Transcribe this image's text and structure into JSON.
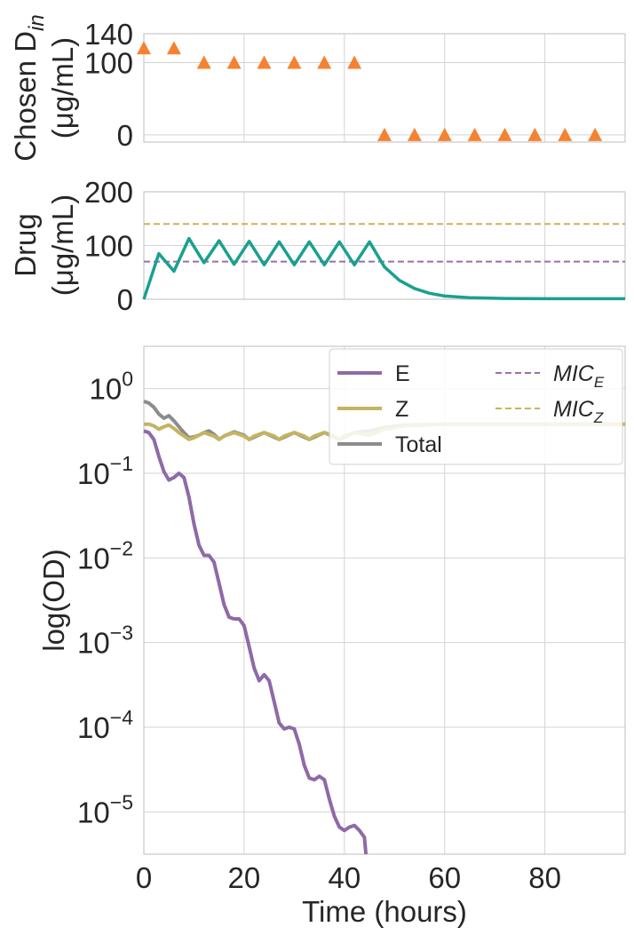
{
  "chart_data": [
    {
      "type": "scatter",
      "ylabel_line1": "Chosen D",
      "ylabel_sub": "in",
      "ylabel_line2": "(μg/mL)",
      "xlim": [
        0,
        96
      ],
      "ylim": [
        -10,
        140
      ],
      "yticks": [
        0,
        100,
        140
      ],
      "marker": "triangle",
      "color": "#f58231",
      "x": [
        0,
        6,
        12,
        18,
        24,
        30,
        36,
        42,
        48,
        54,
        60,
        66,
        72,
        78,
        84,
        90
      ],
      "y": [
        120,
        120,
        100,
        100,
        100,
        100,
        100,
        100,
        0,
        0,
        0,
        0,
        0,
        0,
        0,
        0
      ]
    },
    {
      "type": "line",
      "ylabel_line1": "Drug",
      "ylabel_line2": "(μg/mL)",
      "xlim": [
        0,
        96
      ],
      "ylim": [
        0,
        200
      ],
      "yticks": [
        0,
        100,
        200
      ],
      "mic_lines": [
        {
          "name": "MIC_E",
          "value": 70,
          "color": "#9b6fa8"
        },
        {
          "name": "MIC_Z",
          "value": 140,
          "color": "#c9b25c"
        }
      ],
      "series": [
        {
          "color": "#1aa090",
          "points": [
            [
              0,
              0
            ],
            [
              3,
              85
            ],
            [
              6,
              52
            ],
            [
              9,
              113
            ],
            [
              12,
              68
            ],
            [
              15,
              109
            ],
            [
              18,
              65
            ],
            [
              21,
              108
            ],
            [
              24,
              64
            ],
            [
              27,
              107
            ],
            [
              30,
              64
            ],
            [
              33,
              107
            ],
            [
              36,
              64
            ],
            [
              39,
              107
            ],
            [
              42,
              64
            ],
            [
              45,
              107
            ],
            [
              48,
              60
            ],
            [
              51,
              35
            ],
            [
              54,
              20
            ],
            [
              57,
              11
            ],
            [
              60,
              6
            ],
            [
              65,
              3
            ],
            [
              72,
              1.5
            ],
            [
              80,
              1
            ],
            [
              96,
              1
            ]
          ]
        }
      ]
    },
    {
      "type": "line",
      "xlabel": "Time (hours)",
      "ylabel": "log(OD)",
      "xlim": [
        0,
        96
      ],
      "xticks": [
        0,
        20,
        40,
        60,
        80
      ],
      "yscale": "log",
      "ylim_log10": [
        -5.5,
        0.5
      ],
      "yticks_exp": [
        0,
        -1,
        -2,
        -3,
        -4,
        -5
      ],
      "legend": {
        "placement": "top-right",
        "columns": 2,
        "entries": [
          {
            "label": "E",
            "style": "solid",
            "color": "#8e6aa6"
          },
          {
            "label": "MIC",
            "sub": "E",
            "style": "dashed",
            "color": "#9b6fa8"
          },
          {
            "label": "Z",
            "style": "solid",
            "color": "#c4b462"
          },
          {
            "label": "MIC",
            "sub": "Z",
            "style": "dashed",
            "color": "#c9b25c"
          },
          {
            "label": "Total",
            "style": "solid",
            "color": "#8c8c8c"
          }
        ]
      },
      "series": [
        {
          "name": "Total",
          "color": "#8c8c8c",
          "points_log10": [
            [
              0,
              -0.15
            ],
            [
              1,
              -0.17
            ],
            [
              2,
              -0.22
            ],
            [
              3,
              -0.3
            ],
            [
              4,
              -0.35
            ],
            [
              5,
              -0.32
            ],
            [
              6,
              -0.38
            ],
            [
              7,
              -0.45
            ],
            [
              8,
              -0.52
            ],
            [
              9,
              -0.58
            ],
            [
              10,
              -0.57
            ],
            [
              11,
              -0.55
            ],
            [
              12,
              -0.52
            ],
            [
              13,
              -0.5
            ],
            [
              14,
              -0.54
            ],
            [
              15,
              -0.6
            ],
            [
              16,
              -0.56
            ],
            [
              18,
              -0.51
            ],
            [
              20,
              -0.55
            ],
            [
              21,
              -0.6
            ],
            [
              24,
              -0.52
            ],
            [
              27,
              -0.6
            ],
            [
              30,
              -0.52
            ],
            [
              33,
              -0.6
            ],
            [
              36,
              -0.52
            ],
            [
              39,
              -0.6
            ],
            [
              42,
              -0.52
            ],
            [
              45,
              -0.5
            ],
            [
              48,
              -0.46
            ],
            [
              52,
              -0.43
            ],
            [
              60,
              -0.42
            ],
            [
              96,
              -0.42
            ]
          ]
        },
        {
          "name": "Z",
          "color": "#c4b462",
          "points_log10": [
            [
              0,
              -0.42
            ],
            [
              1,
              -0.42
            ],
            [
              2,
              -0.44
            ],
            [
              3,
              -0.48
            ],
            [
              4,
              -0.45
            ],
            [
              5,
              -0.43
            ],
            [
              6,
              -0.47
            ],
            [
              7,
              -0.52
            ],
            [
              8,
              -0.56
            ],
            [
              9,
              -0.6
            ],
            [
              10,
              -0.58
            ],
            [
              12,
              -0.52
            ],
            [
              14,
              -0.56
            ],
            [
              15,
              -0.6
            ],
            [
              16,
              -0.56
            ],
            [
              18,
              -0.52
            ],
            [
              20,
              -0.56
            ],
            [
              21,
              -0.6
            ],
            [
              22,
              -0.56
            ],
            [
              24,
              -0.52
            ],
            [
              26,
              -0.56
            ],
            [
              27,
              -0.6
            ],
            [
              28,
              -0.56
            ],
            [
              30,
              -0.52
            ],
            [
              32,
              -0.56
            ],
            [
              33,
              -0.6
            ],
            [
              34,
              -0.56
            ],
            [
              36,
              -0.52
            ],
            [
              38,
              -0.56
            ],
            [
              39,
              -0.6
            ],
            [
              40,
              -0.56
            ],
            [
              42,
              -0.52
            ],
            [
              44,
              -0.54
            ],
            [
              45,
              -0.55
            ],
            [
              48,
              -0.48
            ],
            [
              52,
              -0.44
            ],
            [
              60,
              -0.42
            ],
            [
              96,
              -0.42
            ]
          ]
        },
        {
          "name": "E",
          "color": "#8e6aa6",
          "points_log10": [
            [
              0,
              -0.5
            ],
            [
              1,
              -0.52
            ],
            [
              2,
              -0.6
            ],
            [
              3,
              -0.8
            ],
            [
              4,
              -0.98
            ],
            [
              5,
              -1.08
            ],
            [
              6,
              -1.05
            ],
            [
              7,
              -1.0
            ],
            [
              8,
              -1.05
            ],
            [
              9,
              -1.28
            ],
            [
              10,
              -1.6
            ],
            [
              11,
              -1.85
            ],
            [
              12,
              -1.97
            ],
            [
              13,
              -1.97
            ],
            [
              14,
              -2.05
            ],
            [
              15,
              -2.3
            ],
            [
              16,
              -2.55
            ],
            [
              17,
              -2.7
            ],
            [
              18,
              -2.72
            ],
            [
              19,
              -2.72
            ],
            [
              20,
              -2.8
            ],
            [
              21,
              -3.05
            ],
            [
              22,
              -3.3
            ],
            [
              23,
              -3.45
            ],
            [
              24,
              -3.38
            ],
            [
              25,
              -3.45
            ],
            [
              26,
              -3.7
            ],
            [
              27,
              -3.95
            ],
            [
              28,
              -4.02
            ],
            [
              29,
              -4.0
            ],
            [
              30,
              -4.02
            ],
            [
              31,
              -4.2
            ],
            [
              32,
              -4.45
            ],
            [
              33,
              -4.6
            ],
            [
              34,
              -4.62
            ],
            [
              35,
              -4.58
            ],
            [
              36,
              -4.62
            ],
            [
              37,
              -4.85
            ],
            [
              38,
              -5.05
            ],
            [
              39,
              -5.18
            ],
            [
              40,
              -5.22
            ],
            [
              41,
              -5.18
            ],
            [
              42,
              -5.16
            ],
            [
              43,
              -5.22
            ],
            [
              44,
              -5.3
            ],
            [
              44.3,
              -5.6
            ]
          ]
        }
      ]
    }
  ]
}
